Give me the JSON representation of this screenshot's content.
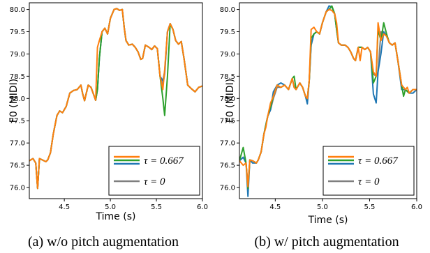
{
  "chart_data": [
    {
      "type": "line",
      "caption": "(a) w/o pitch augmentation",
      "xlabel": "Time (s)",
      "ylabel": "F0 (MIDI)",
      "xlim": [
        4.12,
        6.0
      ],
      "ylim": [
        75.75,
        80.15
      ],
      "xticks": [
        "4.5",
        "5.0",
        "5.5",
        "6.0"
      ],
      "yticks": [
        "76.0",
        "76.5",
        "77.0",
        "77.5",
        "78.0",
        "78.5",
        "79.0",
        "79.5",
        "80.0"
      ],
      "legend_position": "lower-right",
      "legend": [
        "τ = 0.667",
        "τ = 0"
      ],
      "colors": {
        "orange": "#ff7f0e",
        "green": "#2ca02c",
        "blue": "#1f77b4",
        "gray": "#7f7f7f"
      },
      "base_curve": [
        [
          4.12,
          76.6
        ],
        [
          4.16,
          76.65
        ],
        [
          4.19,
          76.55
        ],
        [
          4.21,
          75.98
        ],
        [
          4.23,
          76.65
        ],
        [
          4.26,
          76.62
        ],
        [
          4.3,
          76.58
        ],
        [
          4.32,
          76.62
        ],
        [
          4.35,
          76.78
        ],
        [
          4.38,
          77.2
        ],
        [
          4.42,
          77.62
        ],
        [
          4.45,
          77.72
        ],
        [
          4.48,
          77.68
        ],
        [
          4.52,
          77.82
        ],
        [
          4.56,
          78.12
        ],
        [
          4.6,
          78.18
        ],
        [
          4.64,
          78.2
        ],
        [
          4.68,
          78.3
        ],
        [
          4.7,
          78.1
        ],
        [
          4.72,
          77.95
        ],
        [
          4.76,
          78.3
        ],
        [
          4.79,
          78.25
        ],
        [
          4.82,
          78.08
        ],
        [
          4.84,
          77.96
        ],
        [
          4.86,
          78.2
        ],
        [
          4.88,
          78.9
        ],
        [
          4.91,
          79.5
        ],
        [
          4.94,
          79.58
        ],
        [
          4.97,
          79.45
        ],
        [
          5.0,
          79.8
        ],
        [
          5.04,
          80.0
        ],
        [
          5.07,
          80.02
        ],
        [
          5.1,
          79.98
        ],
        [
          5.13,
          80.0
        ],
        [
          5.15,
          79.6
        ],
        [
          5.17,
          79.3
        ],
        [
          5.2,
          79.2
        ],
        [
          5.24,
          79.22
        ],
        [
          5.27,
          79.15
        ],
        [
          5.3,
          79.05
        ],
        [
          5.33,
          78.88
        ],
        [
          5.35,
          78.9
        ],
        [
          5.38,
          79.2
        ],
        [
          5.42,
          79.15
        ],
        [
          5.45,
          79.1
        ],
        [
          5.48,
          79.18
        ],
        [
          5.51,
          79.12
        ],
        [
          5.54,
          78.5
        ],
        [
          5.57,
          78.3
        ],
        [
          5.59,
          78.55
        ],
        [
          5.62,
          79.5
        ],
        [
          5.65,
          79.68
        ],
        [
          5.68,
          79.55
        ],
        [
          5.71,
          79.3
        ],
        [
          5.74,
          79.22
        ],
        [
          5.77,
          79.28
        ],
        [
          5.8,
          78.9
        ],
        [
          5.84,
          78.3
        ],
        [
          5.88,
          78.22
        ],
        [
          5.92,
          78.15
        ],
        [
          5.96,
          78.25
        ],
        [
          6.0,
          78.28
        ]
      ],
      "series": [
        {
          "color": "#7f7f7f",
          "legend": 1,
          "deviations": []
        },
        {
          "color": "#1f77b4",
          "legend": 0,
          "deviations": [
            [
              5.57,
              78.4
            ],
            [
              5.6,
              78.6
            ]
          ]
        },
        {
          "color": "#2ca02c",
          "legend": 0,
          "deviations": [
            [
              5.56,
              78.0
            ],
            [
              5.59,
              77.62
            ],
            [
              5.61,
              78.5
            ]
          ]
        },
        {
          "color": "#ff7f0e",
          "legend": 0,
          "deviations": [
            [
              4.86,
              79.15
            ],
            [
              4.88,
              79.3
            ],
            [
              5.56,
              78.2
            ],
            [
              5.59,
              78.65
            ]
          ]
        }
      ]
    },
    {
      "type": "line",
      "caption": "(b) w/ pitch augmentation",
      "xlabel": "Time (s)",
      "ylabel": "F0 (MIDI)",
      "xlim": [
        4.12,
        6.0
      ],
      "ylim": [
        75.75,
        80.15
      ],
      "xticks": [
        "4.5",
        "5.0",
        "5.5",
        "6.0"
      ],
      "yticks": [
        "76.0",
        "76.5",
        "77.0",
        "77.5",
        "78.0",
        "78.5",
        "79.0",
        "79.5",
        "80.0"
      ],
      "legend_position": "lower-right",
      "legend": [
        "τ = 0.667",
        "τ = 0"
      ],
      "colors": {
        "orange": "#ff7f0e",
        "green": "#2ca02c",
        "blue": "#1f77b4",
        "gray": "#7f7f7f"
      },
      "base_curve": [
        [
          4.12,
          76.6
        ],
        [
          4.16,
          76.68
        ],
        [
          4.19,
          76.55
        ],
        [
          4.21,
          76.02
        ],
        [
          4.23,
          76.62
        ],
        [
          4.26,
          76.6
        ],
        [
          4.3,
          76.55
        ],
        [
          4.32,
          76.62
        ],
        [
          4.35,
          76.8
        ],
        [
          4.38,
          77.2
        ],
        [
          4.42,
          77.6
        ],
        [
          4.45,
          77.75
        ],
        [
          4.48,
          78.05
        ],
        [
          4.52,
          78.3
        ],
        [
          4.56,
          78.25
        ],
        [
          4.6,
          78.3
        ],
        [
          4.64,
          78.2
        ],
        [
          4.68,
          78.45
        ],
        [
          4.7,
          78.25
        ],
        [
          4.72,
          78.2
        ],
        [
          4.76,
          78.35
        ],
        [
          4.79,
          78.25
        ],
        [
          4.82,
          78.05
        ],
        [
          4.84,
          78.0
        ],
        [
          4.86,
          78.4
        ],
        [
          4.88,
          79.2
        ],
        [
          4.91,
          79.45
        ],
        [
          4.94,
          79.5
        ],
        [
          4.97,
          79.45
        ],
        [
          5.0,
          79.7
        ],
        [
          5.04,
          79.95
        ],
        [
          5.07,
          80.0
        ],
        [
          5.1,
          79.98
        ],
        [
          5.13,
          79.9
        ],
        [
          5.15,
          79.55
        ],
        [
          5.17,
          79.25
        ],
        [
          5.2,
          79.2
        ],
        [
          5.24,
          79.2
        ],
        [
          5.27,
          79.15
        ],
        [
          5.3,
          79.05
        ],
        [
          5.33,
          78.9
        ],
        [
          5.35,
          78.85
        ],
        [
          5.38,
          79.15
        ],
        [
          5.42,
          79.15
        ],
        [
          5.45,
          79.1
        ],
        [
          5.48,
          79.15
        ],
        [
          5.51,
          79.05
        ],
        [
          5.54,
          78.55
        ],
        [
          5.57,
          78.5
        ],
        [
          5.59,
          78.6
        ],
        [
          5.62,
          79.3
        ],
        [
          5.65,
          79.5
        ],
        [
          5.68,
          79.4
        ],
        [
          5.71,
          79.25
        ],
        [
          5.74,
          79.2
        ],
        [
          5.77,
          79.25
        ],
        [
          5.8,
          78.85
        ],
        [
          5.84,
          78.3
        ],
        [
          5.88,
          78.2
        ],
        [
          5.92,
          78.12
        ],
        [
          5.96,
          78.2
        ],
        [
          6.0,
          78.2
        ]
      ],
      "series": [
        {
          "color": "#7f7f7f",
          "legend": 1,
          "deviations": [
            [
              4.48,
              78.0
            ],
            [
              4.52,
              78.25
            ],
            [
              5.62,
              79.5
            ]
          ]
        },
        {
          "color": "#1f77b4",
          "legend": 0,
          "deviations": [
            [
              4.21,
              75.8
            ],
            [
              4.25,
              76.55
            ],
            [
              4.48,
              78.15
            ],
            [
              4.56,
              78.35
            ],
            [
              4.84,
              77.88
            ],
            [
              5.07,
              80.08
            ],
            [
              5.1,
              80.06
            ],
            [
              5.54,
              78.1
            ],
            [
              5.57,
              77.9
            ],
            [
              5.61,
              79.0
            ],
            [
              5.84,
              78.2
            ],
            [
              5.96,
              78.12
            ]
          ]
        },
        {
          "color": "#2ca02c",
          "legend": 0,
          "deviations": [
            [
              4.17,
              76.9
            ],
            [
              4.21,
              75.98
            ],
            [
              4.46,
              77.82
            ],
            [
              4.7,
              78.5
            ],
            [
              4.88,
              79.35
            ],
            [
              5.1,
              80.08
            ],
            [
              5.54,
              78.35
            ],
            [
              5.6,
              79.55
            ],
            [
              5.64,
              79.7
            ],
            [
              5.68,
              79.45
            ],
            [
              5.86,
              78.05
            ]
          ]
        },
        {
          "color": "#ff7f0e",
          "legend": 0,
          "deviations": [
            [
              4.15,
              76.5
            ],
            [
              4.4,
              77.35
            ],
            [
              4.45,
              77.9
            ],
            [
              4.88,
              79.55
            ],
            [
              4.92,
              79.6
            ],
            [
              5.15,
              79.7
            ],
            [
              5.4,
              78.85
            ],
            [
              5.55,
              78.6
            ],
            [
              5.6,
              79.7
            ],
            [
              5.64,
              79.45
            ],
            [
              5.9,
              78.25
            ]
          ]
        }
      ]
    }
  ]
}
